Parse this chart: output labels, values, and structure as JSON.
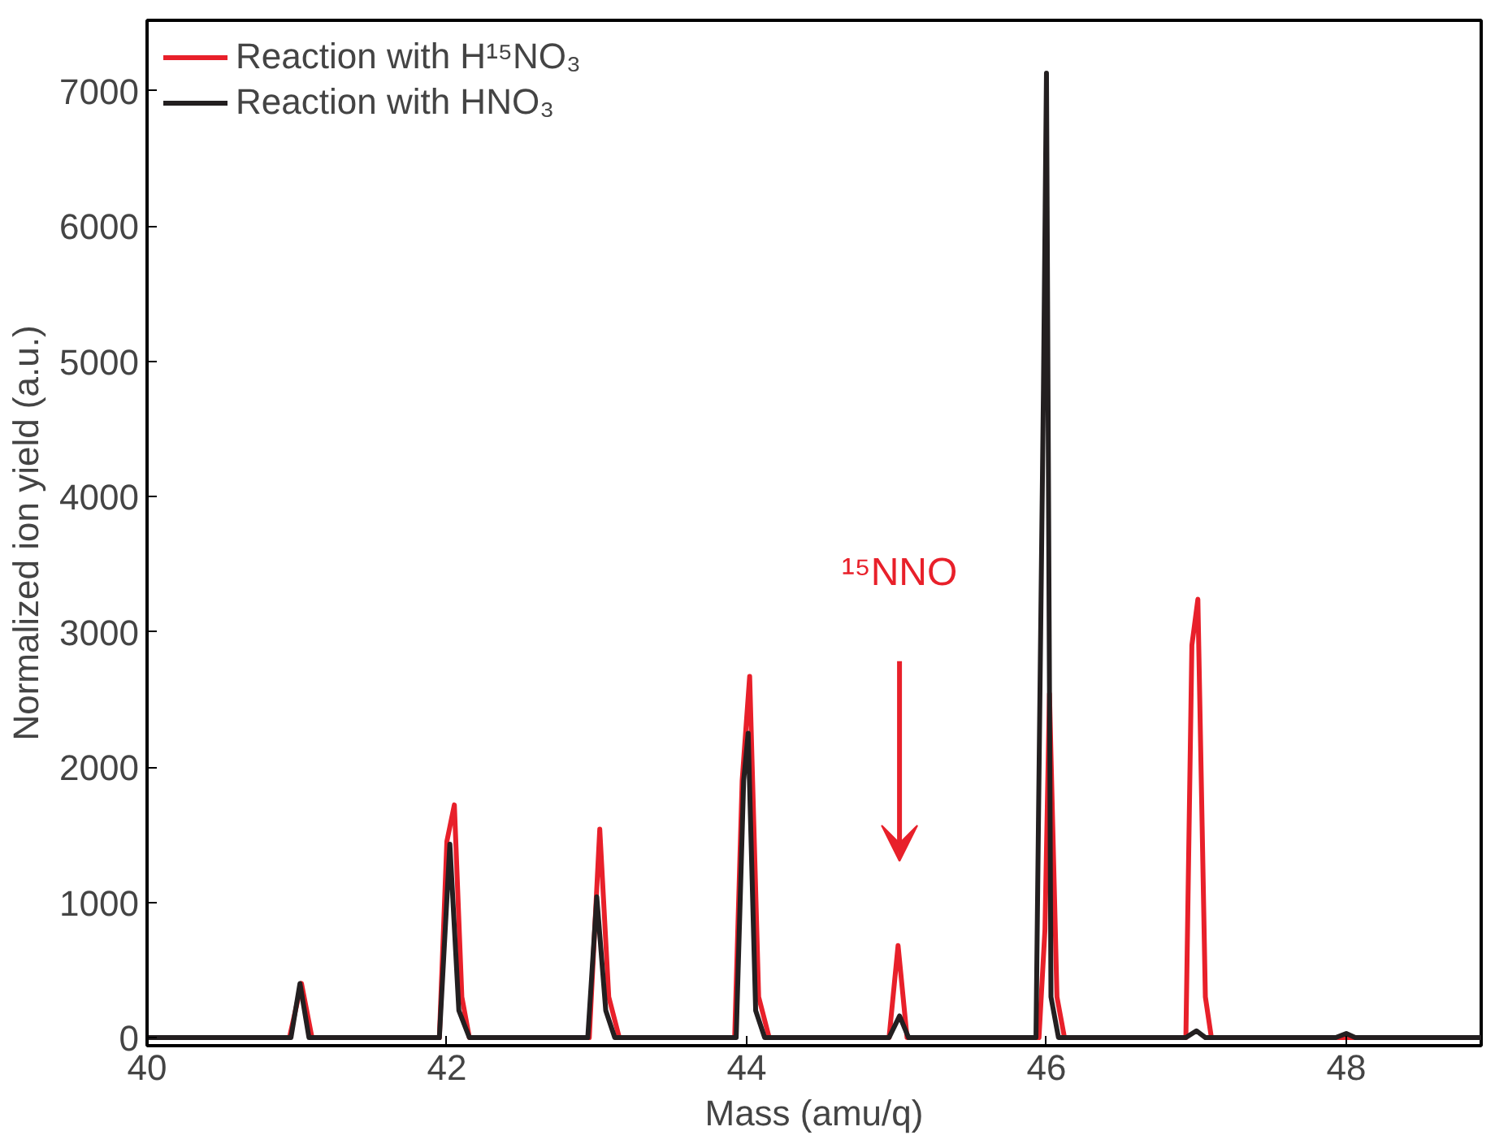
{
  "chart_data": {
    "type": "line",
    "xlabel": "Mass (amu/q)",
    "ylabel": "Normalized ion yield (a.u.)",
    "xlim": [
      40,
      48.9
    ],
    "ylim": [
      -60,
      7520
    ],
    "xticks": [
      40,
      42,
      44,
      46,
      48
    ],
    "yticks": [
      0,
      1000,
      2000,
      3000,
      4000,
      5000,
      6000,
      7000
    ],
    "grid": false,
    "legend": "top left",
    "series": [
      {
        "name": "Reaction with H¹⁵NO₃",
        "color": "#e8202a",
        "x": [
          40,
          40.95,
          41.03,
          41.1,
          41.95,
          42.0,
          42.05,
          42.1,
          42.15,
          42.95,
          43.02,
          43.08,
          43.15,
          43.92,
          43.97,
          44.02,
          44.08,
          44.15,
          44.95,
          45.01,
          45.07,
          45.95,
          45.99,
          46.02,
          46.07,
          46.12,
          46.93,
          46.97,
          47.01,
          47.06,
          47.1,
          48.9
        ],
        "values": [
          0,
          0,
          400,
          0,
          0,
          1450,
          1720,
          300,
          0,
          0,
          1540,
          300,
          0,
          0,
          1900,
          2670,
          300,
          0,
          0,
          680,
          0,
          0,
          800,
          2540,
          300,
          0,
          0,
          2900,
          3240,
          300,
          0,
          0
        ]
      },
      {
        "name": "Reaction with HNO₃",
        "color": "#231f20",
        "x": [
          40,
          40.96,
          41.02,
          41.08,
          41.95,
          42.02,
          42.08,
          42.15,
          42.94,
          43.0,
          43.06,
          43.12,
          43.93,
          43.98,
          44.01,
          44.06,
          44.12,
          44.95,
          45.02,
          45.08,
          45.93,
          45.98,
          46.0,
          46.03,
          46.08,
          46.93,
          47.0,
          47.06,
          47.93,
          48.0,
          48.06,
          48.9
        ],
        "values": [
          0,
          0,
          400,
          0,
          0,
          1430,
          200,
          0,
          0,
          1040,
          200,
          0,
          0,
          1900,
          2250,
          200,
          0,
          0,
          160,
          0,
          0,
          4800,
          7130,
          300,
          0,
          0,
          50,
          0,
          0,
          30,
          0,
          0
        ]
      }
    ],
    "annotations": [
      "¹⁵NNO"
    ]
  }
}
